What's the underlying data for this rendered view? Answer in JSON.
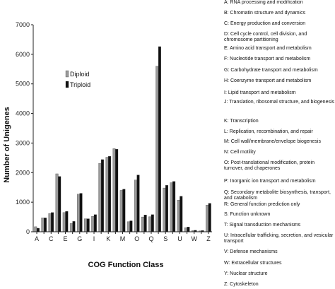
{
  "chart_data": {
    "type": "bar",
    "ylabel": "Number of Unigenes",
    "xlabel": "COG Function Class",
    "ylim": [
      0,
      7000
    ],
    "yticks": [
      0,
      1000,
      2000,
      3000,
      4000,
      5000,
      6000,
      7000
    ],
    "legend_position": "upper-left inside plot",
    "categories": [
      "A",
      "B",
      "C",
      "D",
      "E",
      "F",
      "G",
      "H",
      "I",
      "J",
      "K",
      "L",
      "M",
      "N",
      "O",
      "P",
      "Q",
      "R",
      "S",
      "T",
      "U",
      "V",
      "W",
      "Y",
      "Z"
    ],
    "xtick_labels": [
      "A",
      "",
      "C",
      "",
      "E",
      "",
      "G",
      "",
      "I",
      "",
      "K",
      "",
      "M",
      "",
      "O",
      "",
      "Q",
      "",
      "S",
      "",
      "U",
      "",
      "W",
      "",
      "Z"
    ],
    "series": [
      {
        "name": "Diploid",
        "color": "#9a9a9a",
        "values": [
          170,
          470,
          620,
          1960,
          650,
          280,
          1270,
          440,
          520,
          2310,
          2520,
          2810,
          1400,
          340,
          1750,
          500,
          510,
          5600,
          1480,
          1660,
          1070,
          140,
          40,
          30,
          900
        ]
      },
      {
        "name": "Triploid",
        "color": "#111111",
        "values": [
          120,
          470,
          650,
          1870,
          690,
          350,
          1300,
          440,
          580,
          2440,
          2550,
          2790,
          1440,
          370,
          1920,
          570,
          580,
          6260,
          1570,
          1700,
          1200,
          160,
          50,
          40,
          960
        ]
      }
    ],
    "grid": false
  },
  "cog_legend": [
    "A: RNA processing and modification",
    "B: Chromatin structure and dynamics",
    "C: Energy production and conversion",
    "D: Cell cycle control, cell division, and chromosome partitioning",
    "E: Amino acid transport and metabolism",
    "F: Nucleotide transport and metabolism",
    "G: Carbohydrate transport and metabolism",
    "H: Coenzyme transport and metabolism",
    "I: Lipid transport and metabolism",
    "J: Translation, ribosomal structure, and biogenesis",
    "K: Transcription",
    "L: Replication, recombination, and repair",
    "M: Cell wall/membrane/envelope biogenesis",
    "N: Cell motility",
    "O: Post-translational modification, protein turnover, and chaperones",
    "P: Inorganic ion transport and metabolism",
    "Q: Secondary metabolite biosynthesis, transport, and catabolism",
    "R: General function prediction only",
    "S: Function unknown",
    "T: Signal transduction mechanisms",
    "U: Intracellular trafficking, secretion, and vesicular transport",
    "V: Defense mechanisms",
    "W: Extracellular structures",
    "Y: Nuclear structure",
    "Z: Cytoskeleton"
  ]
}
